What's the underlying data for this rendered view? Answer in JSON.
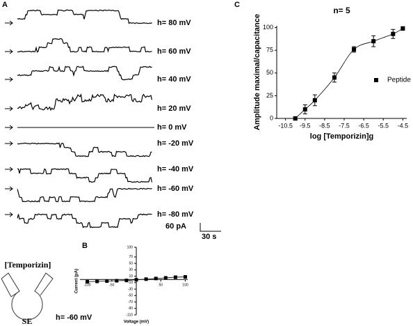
{
  "panel_a": {
    "label": "A",
    "traces": [
      "h= 80 mV",
      "h= 60 mV",
      "h= 40 mV",
      "h= 20 mV",
      "h= 0 mV",
      "h= -20 mV",
      "h= -40 mV",
      "h= -60 mV",
      "h= -80 mV"
    ],
    "scale_current": "60 pA",
    "scale_time": "30 s",
    "schematic": {
      "peptide": "[Temporizin]",
      "cell": "SE",
      "holding": "h= -60 mV"
    }
  },
  "chart_data": [
    {
      "type": "scatter",
      "label": "B",
      "xlabel": "Voltage (mV)",
      "ylabel": "Current (pA)",
      "x": [
        -100,
        -80,
        -60,
        -40,
        -20,
        0,
        20,
        40,
        60,
        80,
        100
      ],
      "values": [
        -7,
        -6,
        -5,
        -4,
        -3,
        -1,
        1,
        3,
        5,
        7,
        8
      ],
      "color": "#000000",
      "xlim": [
        -115,
        105
      ],
      "ylim": [
        -110,
        100
      ],
      "xticks": [
        -100,
        -50,
        50,
        100
      ],
      "yticks": [
        100,
        70,
        50,
        30,
        10,
        -10,
        -30,
        -50,
        -70,
        -90,
        -110
      ]
    },
    {
      "type": "scatter",
      "label": "C",
      "title": "n= 5",
      "xlabel": "log [Temporizin]g",
      "ylabel": "Amplitude maximal/capacitance",
      "series": [
        {
          "name": "Peptide",
          "color": "#000000",
          "x": [
            -10,
            -9.5,
            -9,
            -8,
            -7,
            -6,
            -5,
            -4.5
          ],
          "values": [
            0,
            10,
            20,
            45,
            76,
            85,
            93,
            99
          ],
          "errors": [
            2,
            5,
            6,
            5,
            3,
            6,
            5,
            2
          ]
        }
      ],
      "xlim": [
        -10.95,
        -4.3
      ],
      "ylim": [
        0,
        102
      ],
      "xticks": [
        -10.5,
        -9.5,
        -8.5,
        -7.5,
        -6.5,
        -5.5,
        -4.5
      ],
      "yticks": [
        0,
        25,
        50,
        75,
        100
      ]
    }
  ]
}
